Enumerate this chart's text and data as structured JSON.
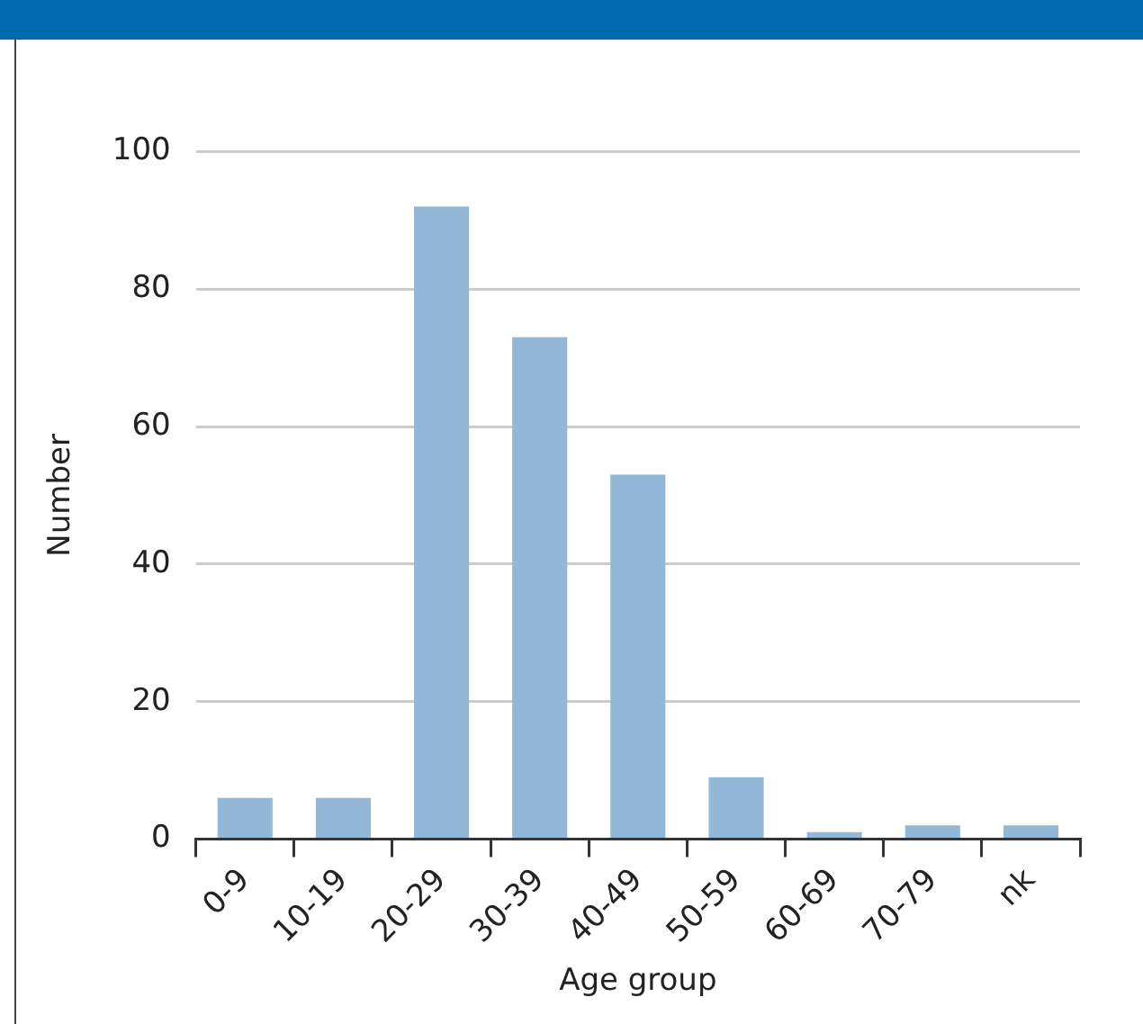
{
  "chart_data": {
    "type": "bar",
    "xlabel": "Age group",
    "ylabel": "Number",
    "categories": [
      "0-9",
      "10-19",
      "20-29",
      "30-39",
      "40-49",
      "50-59",
      "60-69",
      "70-79",
      "nk"
    ],
    "values": [
      6,
      6,
      92,
      73,
      53,
      9,
      1,
      2,
      2
    ],
    "color": "#92b7d7",
    "ylim": [
      0,
      100
    ],
    "yticks": [
      0,
      20,
      40,
      60,
      80,
      100
    ],
    "grid": "y",
    "legend": false
  }
}
